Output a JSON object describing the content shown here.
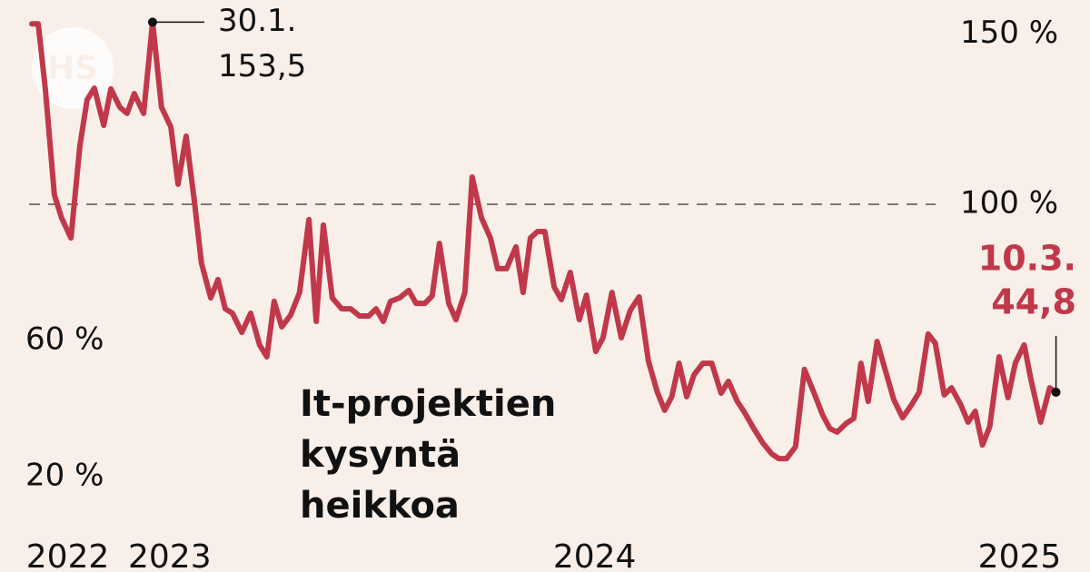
{
  "chart_data": {
    "type": "line",
    "logo": "HS",
    "title": [
      "It-projektien",
      "kysyntä",
      "heikkoa"
    ],
    "xlim": [
      2022.705,
      2025.27
    ],
    "ylim": [
      -8,
      160
    ],
    "xticks": [
      {
        "value": 2022.76,
        "label": "2022"
      },
      {
        "value": 2023,
        "label": "2023"
      },
      {
        "value": 2024,
        "label": "2024"
      },
      {
        "value": 2025,
        "label": "2025"
      }
    ],
    "yticks": [
      {
        "value": 20,
        "label": "20 %"
      },
      {
        "value": 60,
        "label": "60 %"
      },
      {
        "value": 100,
        "label": "100 %"
      },
      {
        "value": 150,
        "label": "150 %"
      }
    ],
    "hline": 100,
    "background": "#f9efe9",
    "x": [
      2022.78,
      2022.795,
      2022.812,
      2022.833,
      2022.85,
      2022.872,
      2022.893,
      2022.91,
      2022.927,
      2022.949,
      2022.966,
      2022.987,
      2023.004,
      2023.021,
      2023.043,
      2023.064,
      2023.085,
      2023.107,
      2023.124,
      2023.143,
      2023.162,
      2023.179,
      2023.201,
      2023.218,
      2023.235,
      2023.252,
      2023.274,
      2023.295,
      2023.316,
      2023.333,
      2023.35,
      2023.368,
      2023.389,
      2023.41,
      2023.432,
      2023.449,
      2023.466,
      2023.487,
      2023.509,
      2023.53,
      2023.551,
      2023.573,
      2023.59,
      2023.607,
      2023.624,
      2023.645,
      2023.667,
      2023.684,
      2023.705,
      2023.722,
      2023.739,
      2023.761,
      2023.778,
      2023.799,
      2023.816,
      2023.838,
      2023.859,
      2023.876,
      2023.897,
      2023.919,
      2023.936,
      2023.953,
      2023.97,
      2023.987,
      2024.009,
      2024.026,
      2024.047,
      2024.068,
      2024.085,
      2024.107,
      2024.124,
      2024.145,
      2024.167,
      2024.188,
      2024.209,
      2024.231,
      2024.252,
      2024.269,
      2024.286,
      2024.303,
      2024.321,
      2024.338,
      2024.359,
      2024.38,
      2024.402,
      2024.419,
      2024.44,
      2024.457,
      2024.479,
      2024.5,
      2024.521,
      2024.538,
      2024.556,
      2024.577,
      2024.598,
      2024.62,
      2024.641,
      2024.658,
      2024.675,
      2024.697,
      2024.714,
      2024.731,
      2024.748,
      2024.769,
      2024.791,
      2024.808,
      2024.829,
      2024.85,
      2024.868,
      2024.889,
      2024.906,
      2024.927,
      2024.944,
      2024.966,
      2024.983,
      2025.0,
      2025.017,
      2025.034,
      2025.056,
      2025.077,
      2025.094,
      2025.115,
      2025.132,
      2025.154,
      2025.175,
      2025.19
    ],
    "series": [
      {
        "color": "#c0384a",
        "values": [
          153.0,
          153.0,
          133.3,
          102.7,
          96.0,
          90.1,
          117.3,
          130.7,
          134.1,
          123.2,
          133.9,
          128.5,
          126.7,
          132.5,
          126.7,
          153.5,
          128.5,
          122.7,
          105.9,
          120.0,
          101.3,
          82.7,
          72.5,
          77.9,
          69.3,
          68.0,
          62.4,
          68.0,
          58.7,
          55.2,
          71.5,
          64.0,
          67.5,
          74.1,
          95.5,
          65.6,
          93.9,
          72.5,
          69.3,
          69.3,
          67.2,
          67.2,
          69.3,
          65.6,
          71.5,
          72.5,
          74.7,
          70.9,
          70.9,
          73.1,
          88.5,
          70.9,
          66.1,
          74.1,
          108.0,
          96.0,
          90.1,
          81.1,
          81.1,
          87.5,
          74.1,
          90.1,
          92.0,
          92.0,
          75.7,
          72.0,
          80.0,
          66.1,
          73.3,
          56.8,
          60.8,
          74.1,
          60.8,
          68.8,
          72.8,
          53.9,
          44.8,
          39.5,
          43.5,
          53.3,
          43.5,
          49.9,
          53.3,
          53.3,
          44.5,
          48.0,
          42.1,
          38.9,
          34.1,
          29.9,
          26.7,
          25.3,
          25.3,
          28.8,
          51.5,
          44.8,
          38.1,
          34.1,
          33.1,
          35.7,
          37.1,
          53.3,
          42.1,
          59.7,
          50.1,
          42.7,
          37.3,
          41.1,
          44.8,
          61.9,
          59.2,
          44.0,
          46.1,
          41.1,
          36.0,
          39.2,
          29.3,
          34.7,
          55.2,
          43.2,
          53.3,
          58.7,
          48.0,
          36.0,
          46.1,
          44.8
        ]
      }
    ],
    "annotations": [
      {
        "date": "30.1.",
        "label": "153,5",
        "x": 2023.064,
        "y": 153.5,
        "color": "#111111"
      },
      {
        "date": "10.3.",
        "label": "44,8",
        "x": 2025.19,
        "y": 44.8,
        "color": "#c0384a"
      }
    ]
  }
}
